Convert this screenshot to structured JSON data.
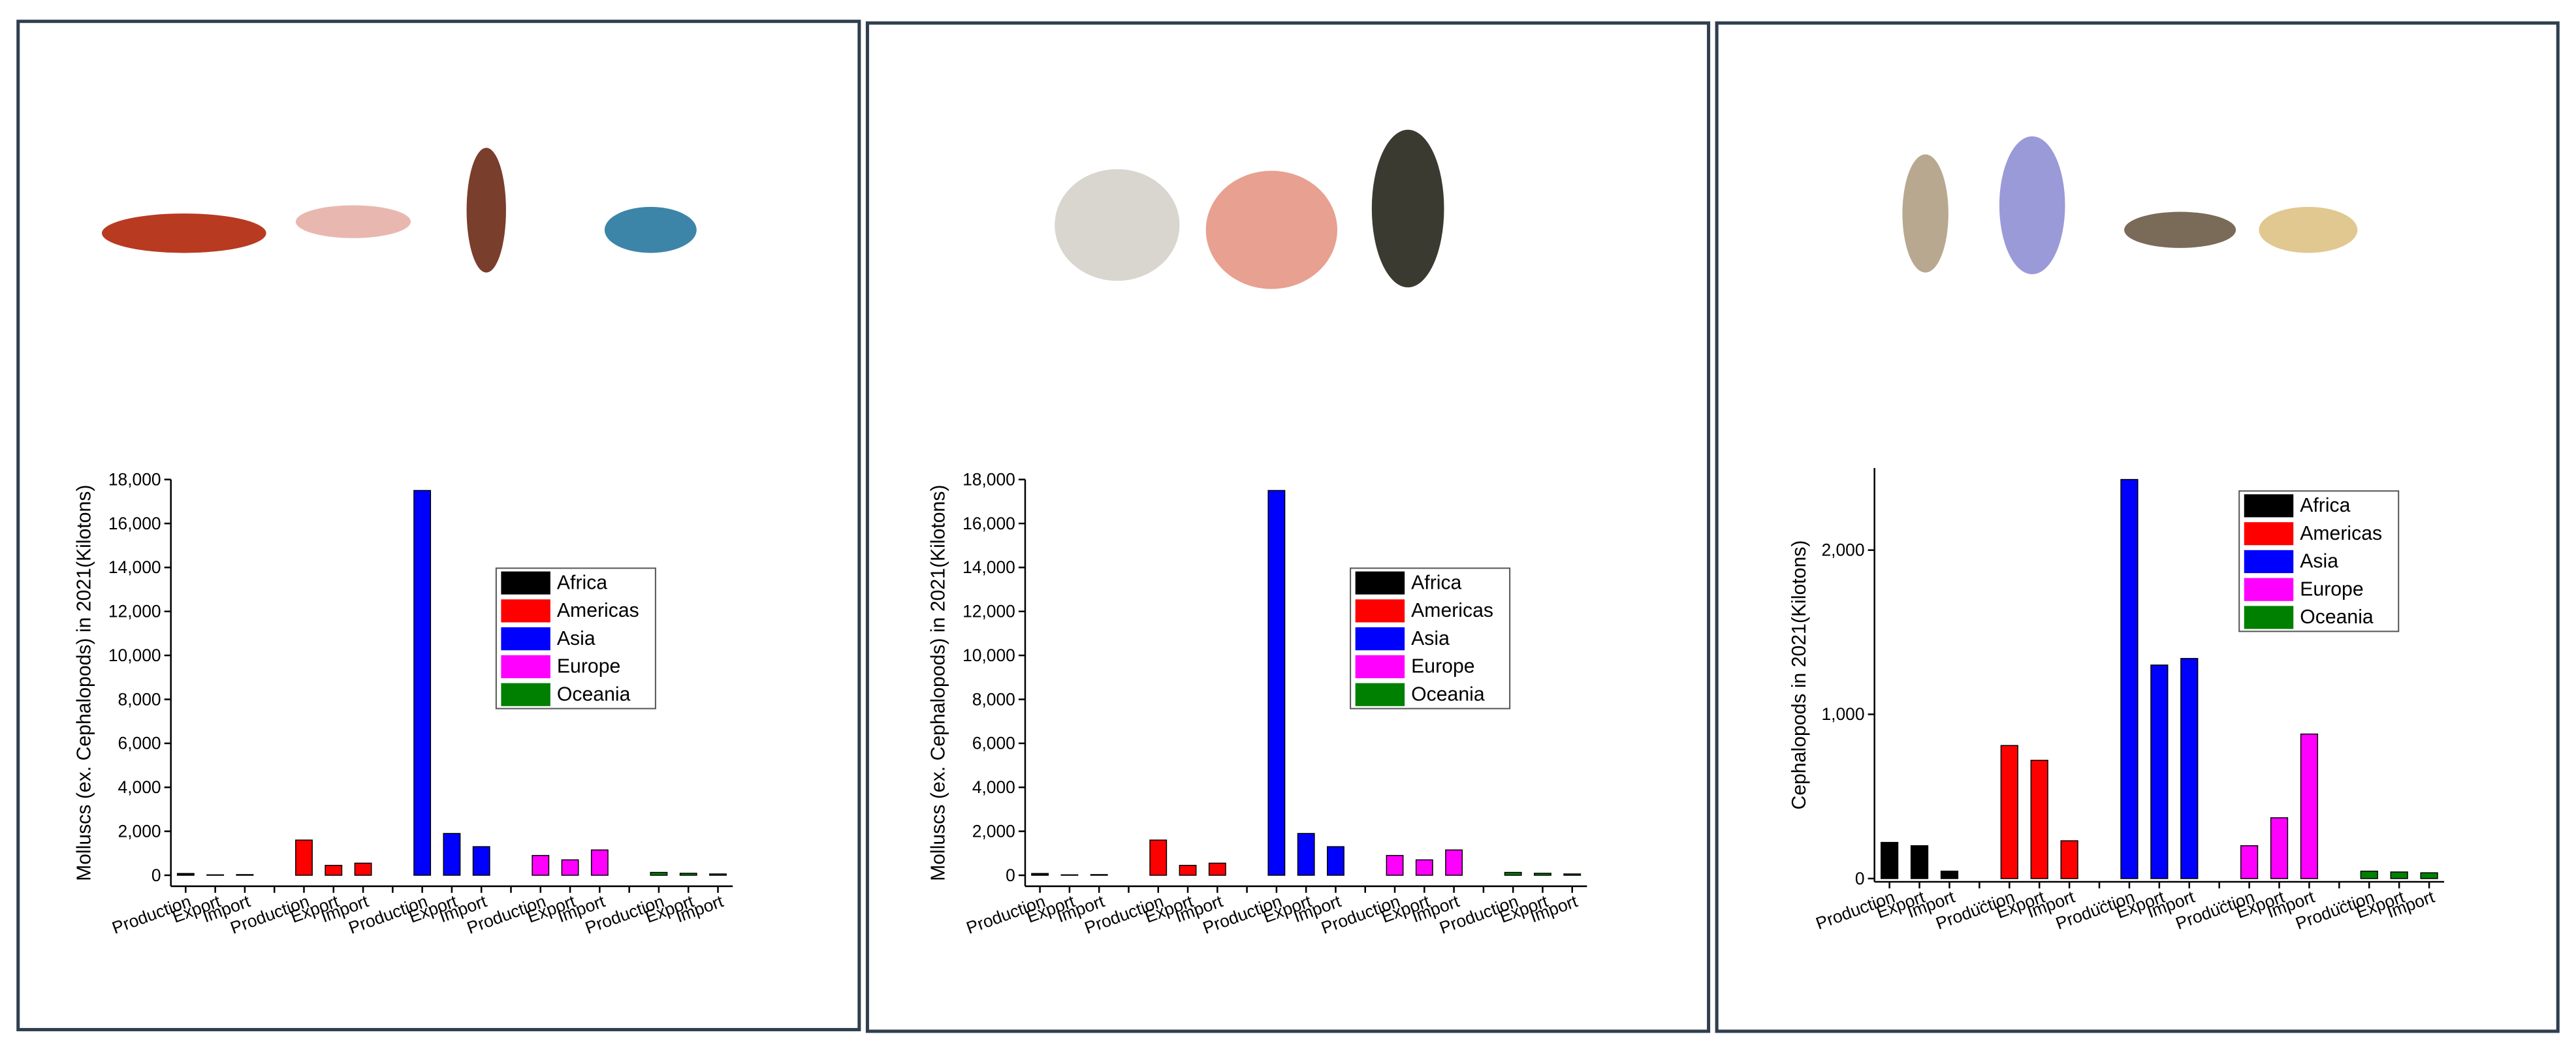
{
  "chart_data": [
    {
      "type": "bar",
      "y_label": "Molluscs (ex. Cephalopods) in 2021(Kilotons)",
      "categories": [
        "Production",
        "Export",
        "Import",
        null,
        "Production",
        "Export",
        "Import",
        null,
        "Production",
        "Export",
        "Import",
        null,
        "Production",
        "Export",
        "Import",
        null,
        "Production",
        "Export",
        "Import"
      ],
      "series": [
        {
          "name": "Africa",
          "color": "#000000",
          "values": [
            80,
            20,
            30,
            null,
            null,
            null,
            null,
            null,
            null,
            null,
            null,
            null,
            null,
            null,
            null,
            null,
            null,
            null,
            null
          ]
        },
        {
          "name": "Americas",
          "color": "#ff0000",
          "values": [
            null,
            null,
            null,
            null,
            1600,
            450,
            550,
            null,
            null,
            null,
            null,
            null,
            null,
            null,
            null,
            null,
            null,
            null,
            null
          ]
        },
        {
          "name": "Asia",
          "color": "#0000ff",
          "values": [
            null,
            null,
            null,
            null,
            null,
            null,
            null,
            null,
            17500,
            1900,
            1300,
            null,
            null,
            null,
            null,
            null,
            null,
            null,
            null
          ]
        },
        {
          "name": "Europe",
          "color": "#ff00ff",
          "values": [
            null,
            null,
            null,
            null,
            null,
            null,
            null,
            null,
            null,
            null,
            null,
            null,
            900,
            700,
            1150,
            null,
            null,
            null,
            null
          ]
        },
        {
          "name": "Oceania",
          "color": "#008000",
          "values": [
            null,
            null,
            null,
            null,
            null,
            null,
            null,
            null,
            null,
            null,
            null,
            null,
            null,
            null,
            null,
            null,
            130,
            90,
            60
          ]
        }
      ],
      "ylim": [
        -500,
        18000
      ],
      "yticks": [
        0,
        {
          "value": 2000,
          "label": "2,000"
        },
        {
          "value": 4000,
          "label": "4,000"
        },
        {
          "value": 6000,
          "label": "6,000"
        },
        {
          "value": 8000,
          "label": "8,000"
        },
        {
          "value": 10000,
          "label": "10,000"
        },
        {
          "value": 12000,
          "label": "12,000"
        },
        {
          "value": 14000,
          "label": "14,000"
        },
        {
          "value": 16000,
          "label": "16,000"
        },
        {
          "value": 18000,
          "label": "18,000"
        }
      ],
      "legend": "right"
    },
    {
      "type": "bar",
      "y_label": "Molluscs (ex. Cephalopods) in 2021(Kilotons)",
      "categories": [
        "Production",
        "Export",
        "Import",
        null,
        "Production",
        "Export",
        "Import",
        null,
        "Production",
        "Export",
        "Import",
        null,
        "Production",
        "Export",
        "Import",
        null,
        "Production",
        "Export",
        "Import"
      ],
      "series": [
        {
          "name": "Africa",
          "color": "#000000",
          "values": [
            80,
            20,
            30,
            null,
            null,
            null,
            null,
            null,
            null,
            null,
            null,
            null,
            null,
            null,
            null,
            null,
            null,
            null,
            null
          ]
        },
        {
          "name": "Americas",
          "color": "#ff0000",
          "values": [
            null,
            null,
            null,
            null,
            1600,
            450,
            550,
            null,
            null,
            null,
            null,
            null,
            null,
            null,
            null,
            null,
            null,
            null,
            null
          ]
        },
        {
          "name": "Asia",
          "color": "#0000ff",
          "values": [
            null,
            null,
            null,
            null,
            null,
            null,
            null,
            null,
            17500,
            1900,
            1300,
            null,
            null,
            null,
            null,
            null,
            null,
            null,
            null
          ]
        },
        {
          "name": "Europe",
          "color": "#ff00ff",
          "values": [
            null,
            null,
            null,
            null,
            null,
            null,
            null,
            null,
            null,
            null,
            null,
            null,
            900,
            700,
            1150,
            null,
            null,
            null,
            null
          ]
        },
        {
          "name": "Oceania",
          "color": "#008000",
          "values": [
            null,
            null,
            null,
            null,
            null,
            null,
            null,
            null,
            null,
            null,
            null,
            null,
            null,
            null,
            null,
            null,
            130,
            90,
            60
          ]
        }
      ],
      "ylim": [
        -500,
        18000
      ],
      "yticks": [
        0,
        {
          "value": 2000,
          "label": "2,000"
        },
        {
          "value": 4000,
          "label": "4,000"
        },
        {
          "value": 6000,
          "label": "6,000"
        },
        {
          "value": 8000,
          "label": "8,000"
        },
        {
          "value": 10000,
          "label": "10,000"
        },
        {
          "value": 12000,
          "label": "12,000"
        },
        {
          "value": 14000,
          "label": "14,000"
        },
        {
          "value": 16000,
          "label": "16,000"
        },
        {
          "value": 18000,
          "label": "18,000"
        }
      ],
      "legend": "right"
    },
    {
      "type": "bar",
      "y_label": "Cephalopods in 2021(Kilotons)",
      "categories": [
        "Production",
        "Export",
        "Import",
        "...",
        "Production",
        "Export",
        "Import",
        "...",
        "Production",
        "Export",
        "Import",
        "...",
        "Production",
        "Export",
        "Import",
        "...",
        "Production",
        "Export",
        "Import"
      ],
      "series": [
        {
          "name": "Africa",
          "color": "#000000",
          "values": [
            220,
            200,
            45,
            null,
            null,
            null,
            null,
            null,
            null,
            null,
            null,
            null,
            null,
            null,
            null,
            null,
            null,
            null,
            null
          ]
        },
        {
          "name": "Americas",
          "color": "#ff0000",
          "values": [
            null,
            null,
            null,
            null,
            810,
            720,
            230,
            null,
            null,
            null,
            null,
            null,
            null,
            null,
            null,
            null,
            null,
            null,
            null
          ]
        },
        {
          "name": "Asia",
          "color": "#0000ff",
          "values": [
            null,
            null,
            null,
            null,
            null,
            null,
            null,
            null,
            2430,
            1300,
            1340,
            null,
            null,
            null,
            null,
            null,
            null,
            null,
            null
          ]
        },
        {
          "name": "Europe",
          "color": "#ff00ff",
          "values": [
            null,
            null,
            null,
            null,
            null,
            null,
            null,
            null,
            null,
            null,
            null,
            null,
            200,
            370,
            880,
            null,
            null,
            null,
            null
          ]
        },
        {
          "name": "Oceania",
          "color": "#008000",
          "values": [
            null,
            null,
            null,
            null,
            null,
            null,
            null,
            null,
            null,
            null,
            null,
            null,
            null,
            null,
            null,
            null,
            45,
            40,
            35
          ]
        }
      ],
      "ylim": [
        -20,
        2500
      ],
      "yticks": [
        0,
        {
          "value": 1000,
          "label": "1,000"
        },
        {
          "value": 2000,
          "label": "2,000"
        }
      ],
      "legend": "upper right"
    }
  ]
}
